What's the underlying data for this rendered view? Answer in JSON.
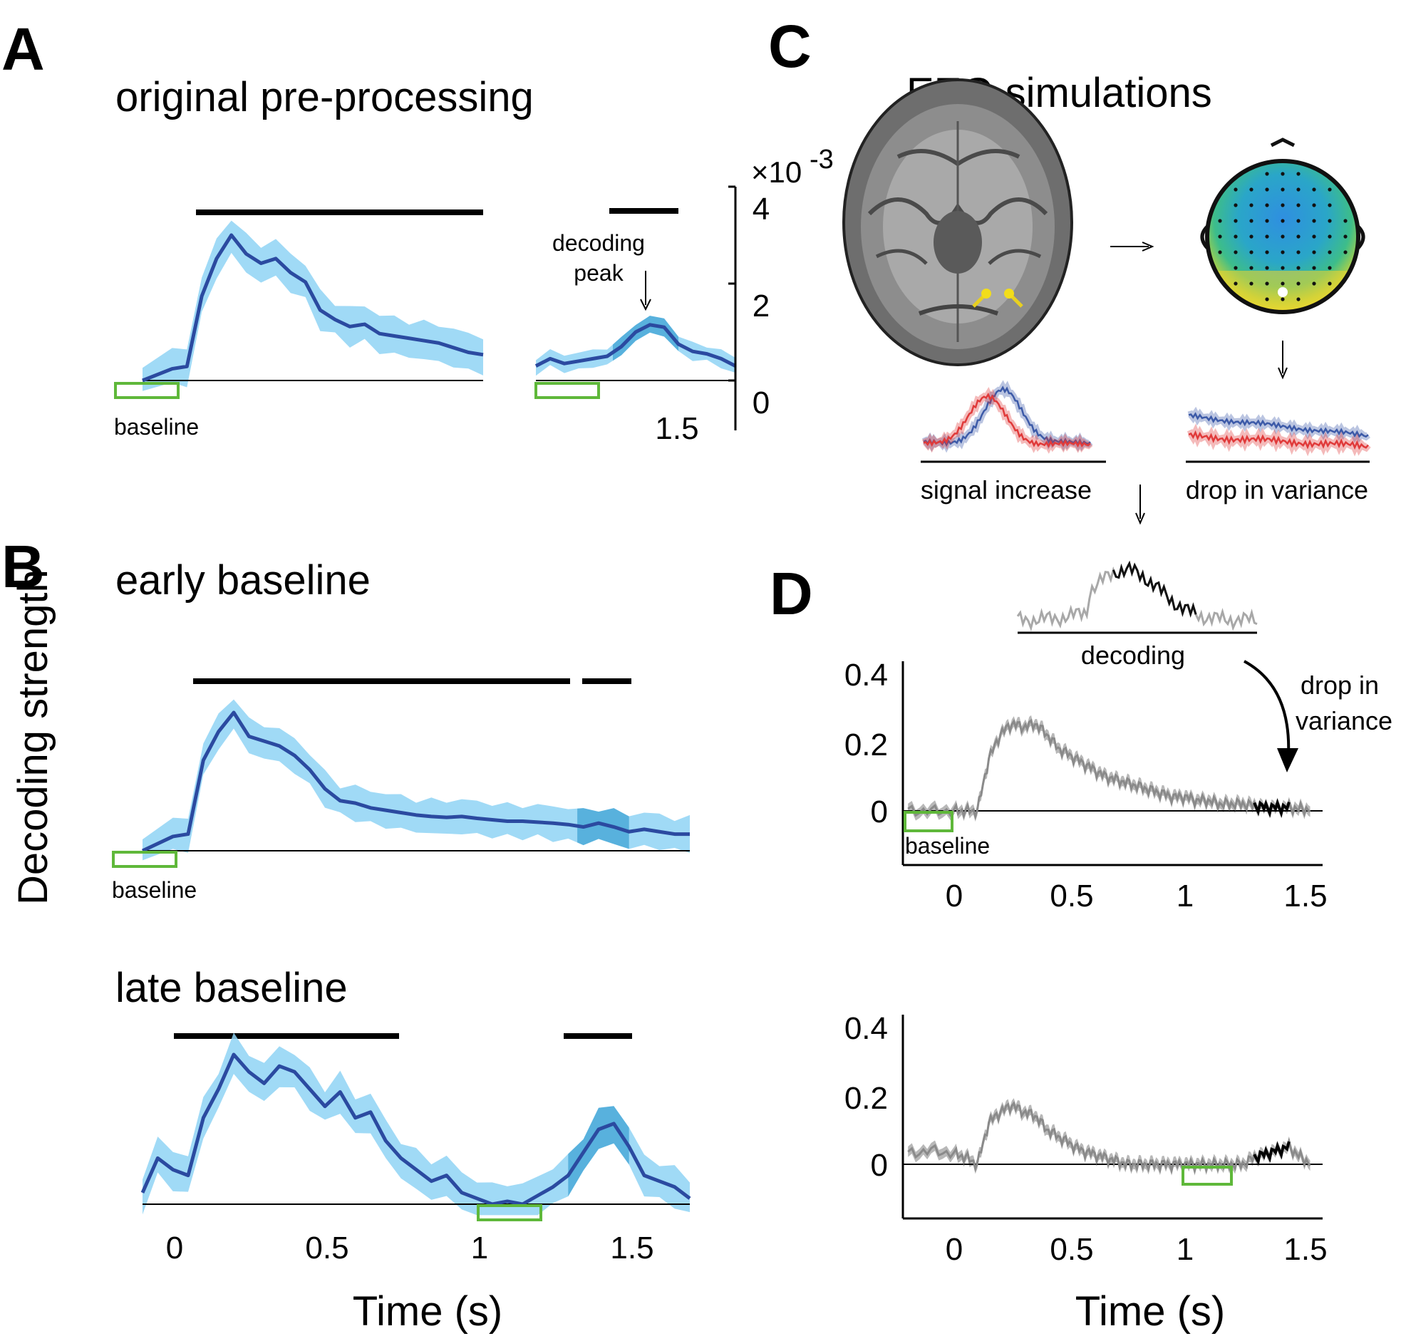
{
  "panels": {
    "A": {
      "letter": "A",
      "title": "original pre-processing",
      "baseline_label": "baseline",
      "peak_label_1": "decoding",
      "peak_label_2": "peak",
      "scale_label": "×10",
      "scale_exp": "-3",
      "y_ticks": [
        "4",
        "2",
        "0"
      ],
      "x_tick": "1.5"
    },
    "B": {
      "letter": "B",
      "title_early": "early baseline",
      "title_late": "late baseline",
      "baseline_label": "baseline",
      "ylabel": "Decoding strength",
      "x_ticks": [
        "0",
        "0.5",
        "1",
        "1.5"
      ],
      "xlabel": "Time (s)"
    },
    "C": {
      "letter": "C",
      "title": "EEG simulations",
      "label_signal": "signal increase",
      "label_variance": "drop in variance"
    },
    "D": {
      "letter": "D",
      "inset_label": "decoding",
      "annot_1": "drop in",
      "annot_2": "variance",
      "baseline_label": "baseline",
      "y_ticks": [
        "0.4",
        "0.2",
        "0"
      ],
      "x_ticks": [
        "0",
        "0.5",
        "1",
        "1.5"
      ],
      "xlabel": "Time (s)"
    }
  },
  "chart_data": [
    {
      "type": "line",
      "panel": "A",
      "title": "original pre-processing",
      "x": [
        -0.1,
        0.0,
        0.05,
        0.1,
        0.15,
        0.2,
        0.25,
        0.3,
        0.35,
        0.4,
        0.45,
        0.5,
        0.55,
        0.6,
        0.65,
        0.7,
        0.75,
        0.8,
        0.85,
        0.9,
        0.95,
        1.0,
        1.05
      ],
      "series": [
        {
          "values": [
            0.0,
            0.25,
            0.3,
            1.8,
            2.6,
            3.1,
            2.7,
            2.5,
            2.6,
            2.3,
            2.1,
            1.5,
            1.3,
            1.15,
            1.2,
            1.0,
            0.95,
            0.9,
            0.85,
            0.8,
            0.7,
            0.6,
            0.55
          ]
        }
      ],
      "ylim": [
        0,
        4
      ]
    },
    {
      "type": "line",
      "panel": "A-zoom",
      "x": [
        1.0,
        1.05,
        1.1,
        1.15,
        1.2,
        1.25,
        1.3,
        1.35,
        1.4,
        1.45,
        1.5,
        1.55,
        1.6,
        1.65,
        1.7
      ],
      "series": [
        {
          "values": [
            0.3,
            0.45,
            0.35,
            0.4,
            0.45,
            0.5,
            0.7,
            1.0,
            1.15,
            1.1,
            0.75,
            0.6,
            0.55,
            0.45,
            0.3
          ]
        }
      ],
      "ylim": [
        0,
        4
      ],
      "y_ticks": [
        0,
        2,
        4
      ],
      "y_multiplier": "×10-3"
    },
    {
      "type": "line",
      "panel": "B-early",
      "title": "early baseline",
      "x": [
        -0.1,
        0.0,
        0.05,
        0.1,
        0.15,
        0.2,
        0.25,
        0.3,
        0.35,
        0.4,
        0.45,
        0.5,
        0.55,
        0.6,
        0.65,
        0.7,
        0.75,
        0.8,
        0.85,
        0.9,
        0.95,
        1.0,
        1.05,
        1.1,
        1.15,
        1.2,
        1.25,
        1.3,
        1.35,
        1.4,
        1.45,
        1.5,
        1.55,
        1.6,
        1.65,
        1.7
      ],
      "series": [
        {
          "values": [
            0.0,
            0.3,
            0.35,
            1.9,
            2.5,
            2.9,
            2.4,
            2.3,
            2.2,
            2.0,
            1.7,
            1.3,
            1.05,
            1.0,
            0.9,
            0.85,
            0.8,
            0.75,
            0.72,
            0.7,
            0.72,
            0.68,
            0.65,
            0.62,
            0.62,
            0.6,
            0.58,
            0.55,
            0.5,
            0.58,
            0.5,
            0.4,
            0.45,
            0.4,
            0.35,
            0.35
          ]
        }
      ],
      "significance": [
        [
          0.05,
          1.3
        ],
        [
          1.35,
          1.5
        ]
      ]
    },
    {
      "type": "line",
      "panel": "B-late",
      "title": "late baseline",
      "x": [
        -0.1,
        -0.05,
        0.0,
        0.05,
        0.1,
        0.15,
        0.2,
        0.25,
        0.3,
        0.35,
        0.4,
        0.45,
        0.5,
        0.55,
        0.6,
        0.65,
        0.7,
        0.75,
        0.8,
        0.85,
        0.9,
        0.95,
        1.0,
        1.05,
        1.1,
        1.15,
        1.2,
        1.25,
        1.3,
        1.35,
        1.4,
        1.45,
        1.5,
        1.55,
        1.6,
        1.65,
        1.7
      ],
      "series": [
        {
          "values": [
            0.2,
            0.8,
            0.6,
            0.5,
            1.5,
            2.0,
            2.6,
            2.3,
            2.1,
            2.4,
            2.3,
            2.0,
            1.7,
            1.95,
            1.5,
            1.6,
            1.1,
            0.8,
            0.6,
            0.4,
            0.5,
            0.2,
            0.1,
            0.0,
            0.05,
            0.0,
            0.15,
            0.3,
            0.5,
            0.9,
            1.3,
            1.4,
            1.0,
            0.5,
            0.4,
            0.3,
            0.1
          ]
        }
      ],
      "significance": [
        [
          0.0,
          0.75
        ],
        [
          1.3,
          1.5
        ]
      ],
      "xlabel": "Time (s)",
      "x_ticks": [
        0,
        0.5,
        1,
        1.5
      ]
    },
    {
      "type": "line",
      "panel": "D-early",
      "x": [
        -0.2,
        -0.1,
        0.0,
        0.05,
        0.1,
        0.15,
        0.2,
        0.25,
        0.3,
        0.35,
        0.4,
        0.45,
        0.5,
        0.55,
        0.6,
        0.65,
        0.7,
        0.75,
        0.8,
        0.85,
        0.9,
        0.95,
        1.0,
        1.05,
        1.1,
        1.15,
        1.2,
        1.25,
        1.3,
        1.35,
        1.4,
        1.45,
        1.5,
        1.55
      ],
      "series": [
        {
          "values": [
            0.0,
            0.0,
            0.0,
            0.0,
            0.0,
            0.15,
            0.22,
            0.25,
            0.24,
            0.25,
            0.22,
            0.18,
            0.16,
            0.14,
            0.12,
            0.1,
            0.09,
            0.08,
            0.07,
            0.06,
            0.05,
            0.04,
            0.04,
            0.03,
            0.03,
            0.02,
            0.02,
            0.02,
            0.015,
            0.01,
            0.01,
            0.01,
            0.005,
            0.005
          ]
        }
      ],
      "ylim": [
        -0.1,
        0.4
      ],
      "y_ticks": [
        0,
        0.2,
        0.4
      ],
      "x_ticks": [
        0,
        0.5,
        1,
        1.5
      ]
    },
    {
      "type": "line",
      "panel": "D-late",
      "x": [
        -0.2,
        -0.1,
        0.0,
        0.05,
        0.1,
        0.15,
        0.2,
        0.25,
        0.3,
        0.35,
        0.4,
        0.45,
        0.5,
        0.55,
        0.6,
        0.65,
        0.7,
        0.75,
        0.8,
        0.85,
        0.9,
        0.95,
        1.0,
        1.05,
        1.1,
        1.15,
        1.2,
        1.25,
        1.3,
        1.35,
        1.4,
        1.45,
        1.5,
        1.55
      ],
      "series": [
        {
          "values": [
            0.03,
            0.04,
            0.03,
            0.02,
            0.0,
            0.12,
            0.15,
            0.17,
            0.15,
            0.14,
            0.1,
            0.08,
            0.06,
            0.04,
            0.03,
            0.02,
            0.01,
            0.0,
            0.0,
            0.0,
            0.0,
            0.0,
            0.0,
            0.0,
            0.0,
            0.0,
            0.0,
            0.0,
            0.02,
            0.03,
            0.04,
            0.05,
            0.02,
            0.0
          ]
        }
      ],
      "ylim": [
        -0.1,
        0.4
      ],
      "y_ticks": [
        0,
        0.2,
        0.4
      ],
      "x_ticks": [
        0,
        0.5,
        1,
        1.5
      ],
      "xlabel": "Time (s)"
    }
  ]
}
